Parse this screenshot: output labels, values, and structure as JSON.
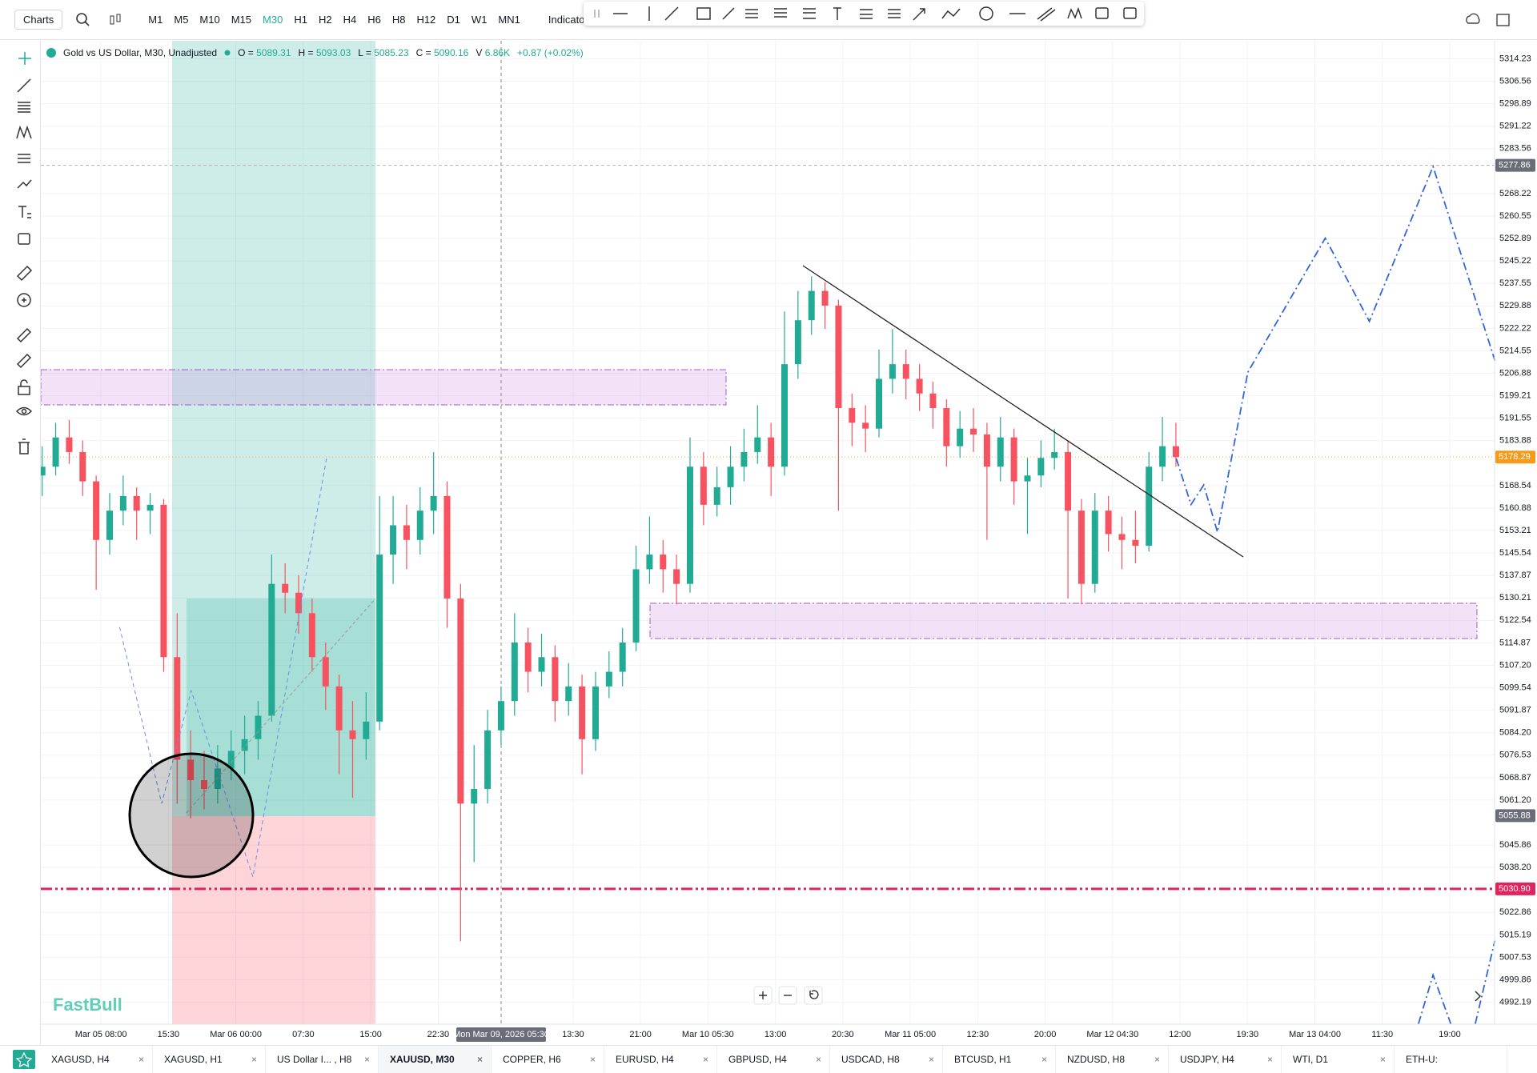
{
  "toolbar": {
    "menu": "Charts",
    "timeframes": [
      "M1",
      "M5",
      "M10",
      "M15",
      "M30",
      "H1",
      "H2",
      "H4",
      "H6",
      "H8",
      "H12",
      "D1",
      "W1",
      "MN1"
    ],
    "indicators": "Indicators"
  },
  "symbol": {
    "name": "Gold vs US Dollar, M30, Unadjusted",
    "open_label": "O =",
    "open": 5089.31,
    "high_label": "H =",
    "high": 5093.03,
    "low_label": "L =",
    "low": 5085.23,
    "close_label": "C =",
    "close": 5090.16,
    "volume_label": "V",
    "volume": "6.86K",
    "change": "+0.87 (+0.02%)"
  },
  "chart": {
    "watermark": "FastBull",
    "crosshair_time": "Mon Mar 09, 2026 05:30",
    "time_labels": [
      "Mar 05 08:00",
      "15:30",
      "Mar 06 00:00",
      "07:30",
      "15:00",
      "22:30",
      "13:30",
      "21:00",
      "Mar 10 05:30",
      "13:00",
      "20:30",
      "Mar 11 05:00",
      "12:30",
      "20:00",
      "Mar 12 04:30",
      "12:00",
      "19:30",
      "Mar 13 04:00",
      "11:30",
      "19:00"
    ],
    "price_ticks": [
      5314.23,
      5306.56,
      5298.89,
      5291.22,
      5283.56,
      5268.22,
      5260.55,
      5252.89,
      5245.22,
      5237.55,
      5229.88,
      5222.22,
      5214.55,
      5206.88,
      5199.21,
      5191.55,
      5183.88,
      5168.54,
      5160.88,
      5153.21,
      5145.54,
      5137.87,
      5130.21,
      5122.54,
      5114.87,
      {
        "value": 5107.2,
        "label": "5107.20"
      },
      5099.54,
      5091.87,
      {
        "value": 5084.2,
        "label": "5084.20"
      },
      5076.53,
      5068.87,
      {
        "value": 5061.2,
        "label": "5061.20"
      },
      5045.86,
      {
        "value": 5038.2,
        "label": "5038.20"
      },
      5022.86,
      5015.19,
      5007.53,
      4999.86,
      4992.19
    ],
    "price_badges": [
      5277.86,
      5178.29,
      5055.88,
      {
        "value": 5030.9,
        "label": "5030.90"
      }
    ],
    "candles": [
      [
        5172,
        5182,
        5165,
        5175
      ],
      [
        5175,
        5190,
        5172,
        5185
      ],
      [
        5185,
        5191,
        5176,
        5180
      ],
      [
        5180,
        5184,
        5165,
        5170
      ],
      [
        5170,
        5172,
        5133,
        5150
      ],
      [
        5150,
        5166,
        5145,
        5160
      ],
      [
        5160,
        5172,
        5155,
        5165
      ],
      [
        5165,
        5168,
        5150,
        5160
      ],
      [
        5160,
        5166,
        5152,
        5162
      ],
      [
        5162,
        5164,
        5105,
        5110
      ],
      [
        5110,
        5125,
        5060,
        5075
      ],
      [
        5075,
        5085,
        5055,
        5068
      ],
      [
        5068,
        5078,
        5058,
        5065
      ],
      [
        5065,
        5080,
        5060,
        5072
      ],
      [
        5072,
        5085,
        5068,
        5078
      ],
      [
        5078,
        5090,
        5070,
        5082
      ],
      [
        5082,
        5095,
        5075,
        5090
      ],
      [
        5090,
        5145,
        5088,
        5135
      ],
      [
        5135,
        5142,
        5125,
        5132
      ],
      [
        5132,
        5138,
        5118,
        5125
      ],
      [
        5125,
        5130,
        5105,
        5110
      ],
      [
        5110,
        5115,
        5092,
        5100
      ],
      [
        5100,
        5104,
        5070,
        5085
      ],
      [
        5085,
        5095,
        5062,
        5082
      ],
      [
        5082,
        5098,
        5075,
        5088
      ],
      [
        5088,
        5165,
        5085,
        5145
      ],
      [
        5145,
        5165,
        5135,
        5155
      ],
      [
        5155,
        5162,
        5140,
        5150
      ],
      [
        5150,
        5168,
        5145,
        5160
      ],
      [
        5160,
        5180,
        5152,
        5165
      ],
      [
        5165,
        5170,
        5120,
        5130
      ],
      [
        5130,
        5135,
        5013,
        5060
      ],
      [
        5060,
        5080,
        5040,
        5065
      ],
      [
        5065,
        5092,
        5060,
        5085
      ],
      [
        5085,
        5100,
        5080,
        5095
      ],
      [
        5095,
        5125,
        5090,
        5115
      ],
      [
        5115,
        5120,
        5098,
        5105
      ],
      [
        5105,
        5118,
        5100,
        5110
      ],
      [
        5110,
        5114,
        5088,
        5095
      ],
      [
        5095,
        5108,
        5090,
        5100
      ],
      [
        5100,
        5104,
        5070,
        5082
      ],
      [
        5082,
        5105,
        5078,
        5100
      ],
      [
        5100,
        5112,
        5096,
        5105
      ],
      [
        5105,
        5120,
        5100,
        5115
      ],
      [
        5115,
        5148,
        5112,
        5140
      ],
      [
        5140,
        5158,
        5135,
        5145
      ],
      [
        5145,
        5150,
        5132,
        5140
      ],
      [
        5140,
        5145,
        5128,
        5135
      ],
      [
        5135,
        5185,
        5132,
        5175
      ],
      [
        5175,
        5180,
        5155,
        5162
      ],
      [
        5162,
        5175,
        5158,
        5168
      ],
      [
        5168,
        5182,
        5162,
        5175
      ],
      [
        5175,
        5188,
        5170,
        5180
      ],
      [
        5180,
        5196,
        5176,
        5185
      ],
      [
        5185,
        5190,
        5165,
        5175
      ],
      [
        5175,
        5228,
        5172,
        5210
      ],
      [
        5210,
        5235,
        5205,
        5225
      ],
      [
        5225,
        5240,
        5220,
        5235
      ],
      [
        5235,
        5238,
        5222,
        5230
      ],
      [
        5230,
        5232,
        5160,
        5195
      ],
      [
        5195,
        5200,
        5182,
        5190
      ],
      [
        5190,
        5196,
        5180,
        5188
      ],
      [
        5188,
        5215,
        5185,
        5205
      ],
      [
        5205,
        5222,
        5200,
        5210
      ],
      [
        5210,
        5215,
        5198,
        5205
      ],
      [
        5205,
        5210,
        5194,
        5200
      ],
      [
        5200,
        5204,
        5188,
        5195
      ],
      [
        5195,
        5198,
        5175,
        5182
      ],
      [
        5182,
        5194,
        5178,
        5188
      ],
      [
        5188,
        5195,
        5180,
        5186
      ],
      [
        5186,
        5190,
        5150,
        5175
      ],
      [
        5175,
        5192,
        5170,
        5185
      ],
      [
        5185,
        5188,
        5162,
        5170
      ],
      [
        5170,
        5178,
        5152,
        5172
      ],
      [
        5172,
        5184,
        5168,
        5178
      ],
      [
        5178,
        5188,
        5174,
        5180
      ],
      [
        5180,
        5184,
        5130,
        5160
      ],
      [
        5160,
        5164,
        5128,
        5135
      ],
      [
        5135,
        5166,
        5132,
        5160
      ],
      [
        5160,
        5165,
        5146,
        5152
      ],
      [
        5152,
        5158,
        5140,
        5150
      ],
      [
        5150,
        5160,
        5142,
        5148
      ],
      [
        5148,
        5180,
        5146,
        5175
      ],
      [
        5175,
        5192,
        5170,
        5182
      ],
      [
        5182,
        5190,
        5175,
        5178.29
      ]
    ]
  },
  "tabs": [
    "XAGUSD, H4",
    "XAGUSD, H1",
    "US Dollar I... , H8",
    "XAUUSD, M30",
    "COPPER, H6",
    "EURUSD, H4",
    "GBPUSD, H4",
    "USDCAD, H8",
    "BTCUSD, H1",
    "NZDUSD, H8",
    "USDJPY, H4",
    "WTI, D1",
    "ETH-U:"
  ]
}
